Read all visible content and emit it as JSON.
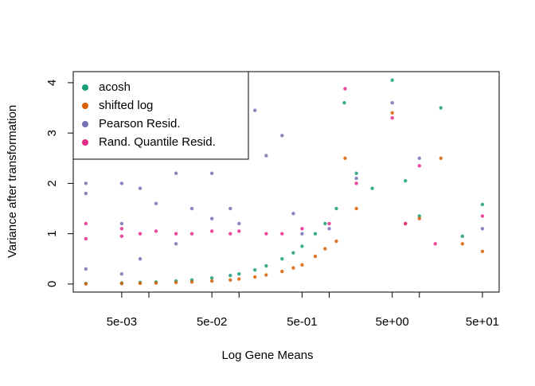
{
  "chart_data": {
    "type": "scatter",
    "xlabel": "Log Gene Means",
    "ylabel": "Variance after transformation",
    "xscale": "log",
    "xlim": [
      0.00145,
      76.7
    ],
    "ylim": [
      -0.16,
      4.22
    ],
    "xticks": [
      {
        "value": 0.005,
        "label": "5e-03"
      },
      {
        "value": 0.01,
        "label": null
      },
      {
        "value": 0.05,
        "label": "5e-02"
      },
      {
        "value": 0.1,
        "label": null
      },
      {
        "value": 0.5,
        "label": "5e-01"
      },
      {
        "value": 1,
        "label": null
      },
      {
        "value": 5,
        "label": "5e+00"
      },
      {
        "value": 10,
        "label": null
      },
      {
        "value": 50,
        "label": "5e+01"
      }
    ],
    "yticks": [
      0,
      1,
      2,
      3,
      4
    ],
    "grid": false,
    "legend": "topleft",
    "series": [
      {
        "name": "acosh",
        "color": "#1b9e77",
        "x": [
          0.002,
          0.005,
          0.008,
          0.012,
          0.02,
          0.03,
          0.05,
          0.08,
          0.1,
          0.15,
          0.2,
          0.3,
          0.4,
          0.5,
          0.7,
          0.9,
          1.2,
          1.47,
          2,
          3,
          5,
          7,
          10,
          17.3,
          30,
          50
        ],
        "values": [
          0.01,
          0.02,
          0.03,
          0.04,
          0.06,
          0.08,
          0.12,
          0.17,
          0.2,
          0.28,
          0.36,
          0.5,
          0.62,
          0.75,
          1.0,
          1.2,
          1.5,
          3.6,
          2.2,
          1.9,
          4.05,
          2.05,
          1.35,
          3.5,
          0.95,
          1.58
        ]
      },
      {
        "name": "shifted log",
        "color": "#d95f02",
        "x": [
          0.002,
          0.005,
          0.008,
          0.012,
          0.02,
          0.03,
          0.05,
          0.08,
          0.1,
          0.15,
          0.2,
          0.3,
          0.4,
          0.5,
          0.7,
          0.9,
          1.2,
          1.5,
          2,
          5,
          7,
          10,
          17.3,
          30,
          50
        ],
        "values": [
          0.005,
          0.01,
          0.015,
          0.02,
          0.03,
          0.04,
          0.06,
          0.08,
          0.1,
          0.14,
          0.18,
          0.25,
          0.32,
          0.38,
          0.55,
          0.7,
          0.85,
          2.5,
          1.5,
          3.4,
          1.2,
          1.3,
          2.5,
          0.8,
          0.65
        ]
      },
      {
        "name": "Pearson Resid.",
        "color": "#7570b3",
        "x": [
          0.002,
          0.002,
          0.002,
          0.005,
          0.005,
          0.005,
          0.008,
          0.008,
          0.012,
          0.02,
          0.02,
          0.03,
          0.05,
          0.05,
          0.08,
          0.1,
          0.15,
          0.2,
          0.3,
          0.4,
          0.5,
          1,
          2,
          5,
          10,
          50
        ],
        "values": [
          0.3,
          1.8,
          2.0,
          0.2,
          1.2,
          2.0,
          0.5,
          1.9,
          1.6,
          0.8,
          2.2,
          1.5,
          2.2,
          1.3,
          1.5,
          1.2,
          3.45,
          2.55,
          2.95,
          1.4,
          1.0,
          1.1,
          2.1,
          3.6,
          2.5,
          1.1
        ]
      },
      {
        "name": "Rand. Quantile Resid.",
        "color": "#e7298a",
        "x": [
          0.002,
          0.002,
          0.005,
          0.005,
          0.008,
          0.012,
          0.02,
          0.03,
          0.05,
          0.08,
          0.1,
          0.2,
          0.3,
          0.5,
          1,
          1.5,
          2,
          5,
          7,
          10,
          15,
          50
        ],
        "values": [
          0.9,
          1.2,
          0.95,
          1.1,
          1.0,
          1.05,
          1.0,
          1.0,
          1.05,
          1.0,
          1.05,
          1.0,
          1.0,
          1.1,
          1.2,
          3.88,
          2.0,
          3.3,
          1.2,
          2.35,
          0.8,
          1.35
        ]
      }
    ]
  }
}
